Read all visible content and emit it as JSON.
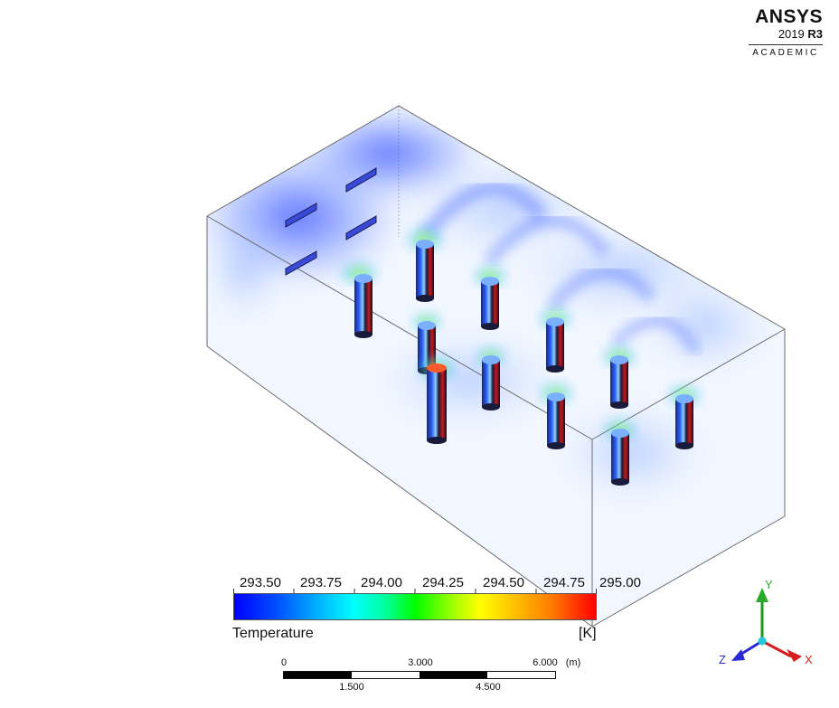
{
  "logo": {
    "brand": "ANSYS",
    "year": "2019",
    "release": "R3",
    "edition": "ACADEMIC"
  },
  "legend": {
    "variable": "Temperature",
    "unit": "[K]",
    "min": 293.5,
    "max": 295.0,
    "ticks": [
      "293.50",
      "293.75",
      "294.00",
      "294.25",
      "294.50",
      "294.75",
      "295.00"
    ],
    "colormap": [
      "#0000ff",
      "#00a8ff",
      "#00ffff",
      "#00ff00",
      "#ffff00",
      "#ff7a00",
      "#ff0000"
    ]
  },
  "scale": {
    "top_labels": [
      "0",
      "3.000",
      "6.000"
    ],
    "unit": "(m)",
    "bottom_labels": [
      "1.500",
      "4.500"
    ]
  },
  "triad": {
    "x_label": "X",
    "y_label": "Y",
    "z_label": "Z",
    "x_color": "#d42020",
    "y_color": "#1a9a1a",
    "z_color": "#2a2ad4"
  }
}
